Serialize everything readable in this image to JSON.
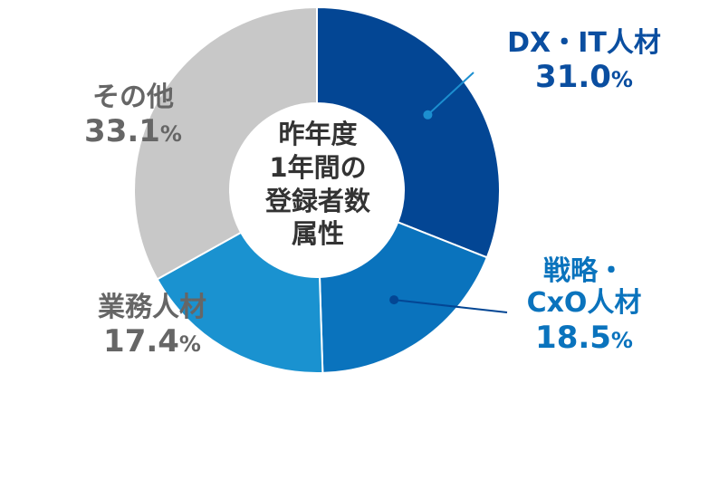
{
  "chart_data": {
    "type": "pie",
    "donut": true,
    "center_title_lines": [
      "昨年度",
      "1年間の",
      "登録者数",
      "属性"
    ],
    "unit": "%",
    "slices": [
      {
        "label": "DX・IT人材",
        "label_lines": [
          "DX・IT人材"
        ],
        "value": 31.0,
        "value_text": "31.0",
        "color": "#034694",
        "label_color": "#0a4ea0"
      },
      {
        "label": "戦略・CxO人材",
        "label_lines": [
          "戦略・",
          "CxO人材"
        ],
        "value": 18.5,
        "value_text": "18.5",
        "color": "#0a73bd",
        "label_color": "#0a73bd"
      },
      {
        "label": "業務人材",
        "label_lines": [
          "業務人材"
        ],
        "value": 17.4,
        "value_text": "17.4",
        "color": "#1a92d0",
        "label_color": "#666666"
      },
      {
        "label": "その他",
        "label_lines": [
          "その他"
        ],
        "value": 33.1,
        "value_text": "33.1",
        "color": "#c8c8c8",
        "label_color": "#666666"
      }
    ]
  }
}
